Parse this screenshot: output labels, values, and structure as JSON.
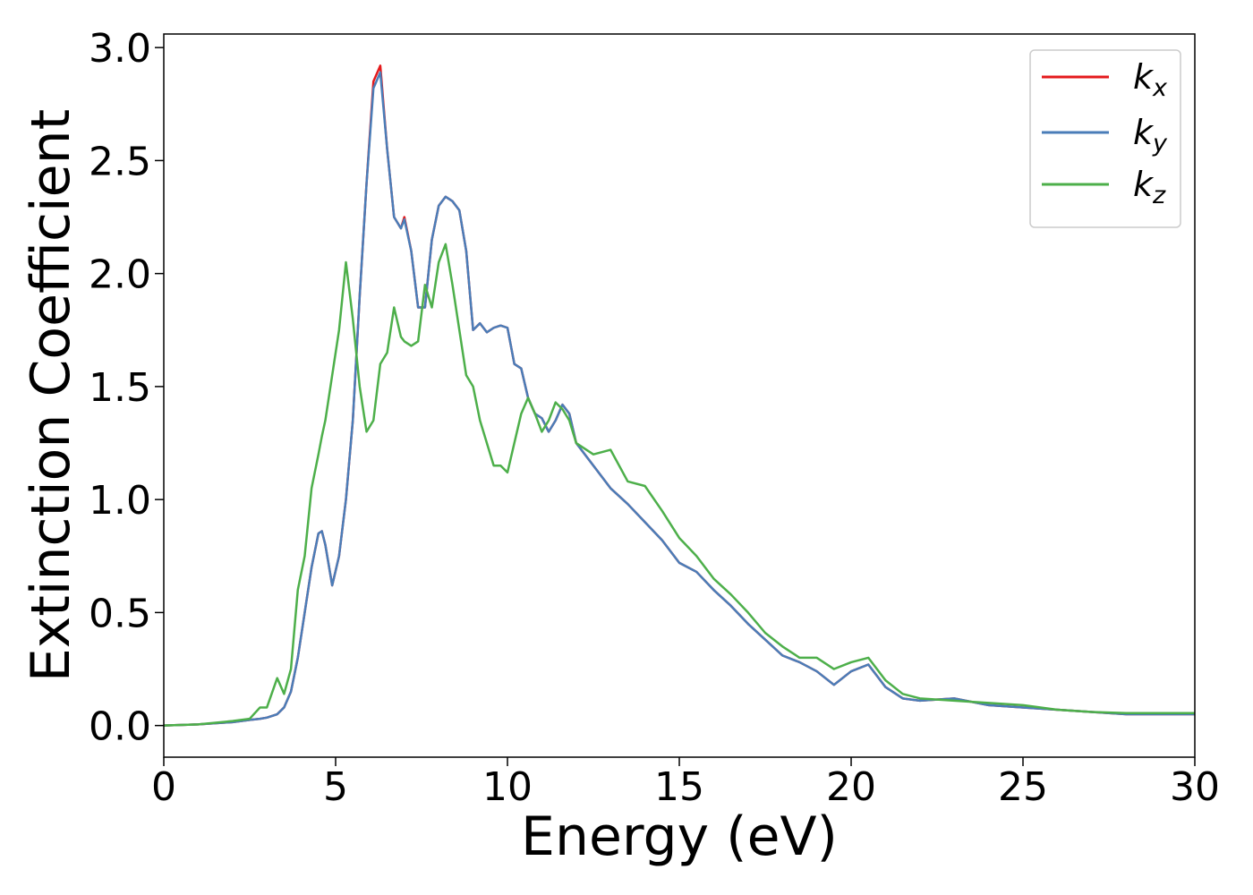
{
  "chart_data": {
    "type": "line",
    "xlabel": "Energy (eV)",
    "ylabel": "Extinction Coefficient",
    "x": [
      0,
      1,
      2,
      2.5,
      2.8,
      3,
      3.3,
      3.5,
      3.7,
      3.9,
      4.1,
      4.3,
      4.5,
      4.6,
      4.7,
      4.9,
      5.1,
      5.3,
      5.5,
      5.7,
      5.9,
      6.1,
      6.3,
      6.5,
      6.7,
      6.9,
      7.0,
      7.2,
      7.4,
      7.6,
      7.8,
      8.0,
      8.2,
      8.4,
      8.6,
      8.8,
      9.0,
      9.2,
      9.4,
      9.6,
      9.8,
      10.0,
      10.2,
      10.4,
      10.6,
      10.8,
      11.0,
      11.2,
      11.4,
      11.6,
      11.8,
      12,
      12.5,
      13,
      13.5,
      14,
      14.5,
      15,
      15.5,
      16,
      16.5,
      17,
      17.5,
      18,
      18.5,
      19,
      19.5,
      20,
      20.5,
      21,
      21.5,
      22,
      23,
      24,
      25,
      26,
      27,
      28,
      29,
      30
    ],
    "series": [
      {
        "name": "k_x",
        "color": "#e41a1c",
        "values": [
          0,
          0.005,
          0.015,
          0.025,
          0.03,
          0.035,
          0.05,
          0.08,
          0.15,
          0.3,
          0.5,
          0.7,
          0.85,
          0.86,
          0.8,
          0.62,
          0.75,
          1.0,
          1.35,
          1.9,
          2.4,
          2.85,
          2.92,
          2.55,
          2.25,
          2.2,
          2.25,
          2.1,
          1.85,
          1.85,
          2.15,
          2.3,
          2.34,
          2.32,
          2.28,
          2.1,
          1.75,
          1.78,
          1.74,
          1.76,
          1.77,
          1.76,
          1.6,
          1.58,
          1.45,
          1.38,
          1.36,
          1.3,
          1.35,
          1.42,
          1.38,
          1.25,
          1.15,
          1.05,
          0.98,
          0.9,
          0.82,
          0.72,
          0.68,
          0.6,
          0.53,
          0.45,
          0.38,
          0.31,
          0.28,
          0.24,
          0.18,
          0.24,
          0.27,
          0.17,
          0.12,
          0.11,
          0.12,
          0.09,
          0.08,
          0.07,
          0.06,
          0.05,
          0.05,
          0.05
        ]
      },
      {
        "name": "k_y",
        "color": "#4a7db8",
        "values": [
          0,
          0.005,
          0.015,
          0.025,
          0.03,
          0.035,
          0.05,
          0.08,
          0.15,
          0.3,
          0.5,
          0.7,
          0.85,
          0.86,
          0.8,
          0.62,
          0.75,
          1.0,
          1.35,
          1.9,
          2.4,
          2.82,
          2.89,
          2.55,
          2.25,
          2.2,
          2.24,
          2.1,
          1.85,
          1.85,
          2.15,
          2.3,
          2.34,
          2.32,
          2.28,
          2.1,
          1.75,
          1.78,
          1.74,
          1.76,
          1.77,
          1.76,
          1.6,
          1.58,
          1.45,
          1.38,
          1.36,
          1.3,
          1.35,
          1.42,
          1.38,
          1.25,
          1.15,
          1.05,
          0.98,
          0.9,
          0.82,
          0.72,
          0.68,
          0.6,
          0.53,
          0.45,
          0.38,
          0.31,
          0.28,
          0.24,
          0.18,
          0.24,
          0.27,
          0.17,
          0.12,
          0.11,
          0.12,
          0.09,
          0.08,
          0.07,
          0.06,
          0.05,
          0.05,
          0.05
        ]
      },
      {
        "name": "k_z",
        "color": "#4daf4a",
        "values": [
          0,
          0.005,
          0.02,
          0.03,
          0.08,
          0.08,
          0.21,
          0.14,
          0.25,
          0.6,
          0.75,
          1.05,
          1.2,
          1.28,
          1.35,
          1.55,
          1.75,
          2.05,
          1.8,
          1.5,
          1.3,
          1.35,
          1.6,
          1.65,
          1.85,
          1.72,
          1.7,
          1.68,
          1.7,
          1.95,
          1.85,
          2.05,
          2.13,
          1.95,
          1.75,
          1.55,
          1.5,
          1.35,
          1.25,
          1.15,
          1.15,
          1.12,
          1.25,
          1.38,
          1.45,
          1.38,
          1.3,
          1.35,
          1.43,
          1.4,
          1.35,
          1.25,
          1.2,
          1.22,
          1.08,
          1.06,
          0.95,
          0.83,
          0.75,
          0.65,
          0.58,
          0.5,
          0.41,
          0.35,
          0.3,
          0.3,
          0.25,
          0.28,
          0.3,
          0.2,
          0.14,
          0.12,
          0.11,
          0.1,
          0.09,
          0.07,
          0.06,
          0.055,
          0.055,
          0.055
        ]
      }
    ],
    "xlim": [
      0,
      30
    ],
    "xticks": [
      0,
      5,
      10,
      15,
      20,
      25,
      30
    ],
    "ylim": [
      -0.14,
      3.06
    ],
    "yticks": [
      {
        "value": 0,
        "label": "0.0"
      },
      0.5,
      {
        "value": 1,
        "label": "1.0"
      },
      1.5,
      {
        "value": 2,
        "label": "2.0"
      },
      2.5,
      {
        "value": 3,
        "label": "3.0"
      }
    ],
    "grid": false,
    "legend": "upper right"
  }
}
